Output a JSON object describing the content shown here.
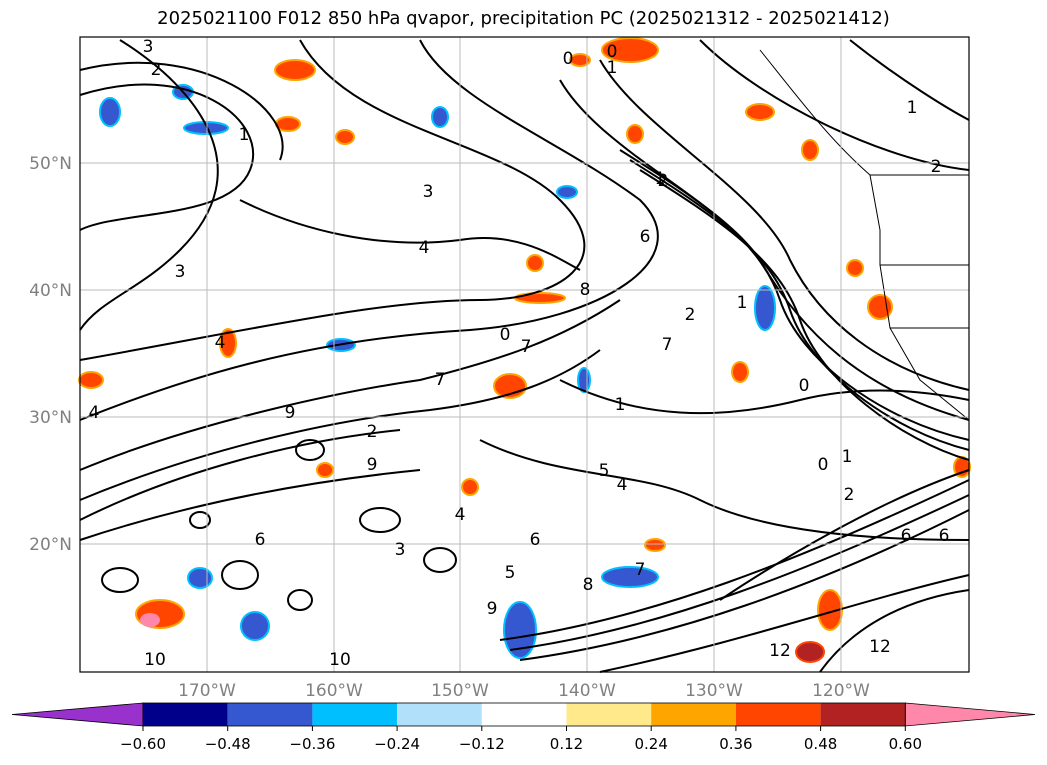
{
  "title": "2025021100 F012 850 hPa qvapor, precipitation PC (2025021312 - 2025021412)",
  "map": {
    "lat_labels": [
      "50°N",
      "40°N",
      "30°N",
      "20°N"
    ],
    "lon_labels": [
      "170°W",
      "160°W",
      "150°W",
      "140°W",
      "130°W",
      "120°W"
    ],
    "grid": true,
    "contour_labels": [
      "3",
      "2",
      "1",
      "0",
      "1",
      "2",
      "3",
      "4",
      "3",
      "4",
      "6",
      "7",
      "8",
      "7",
      "0",
      "1",
      "2",
      "4",
      "5",
      "6",
      "7",
      "8",
      "9",
      "10",
      "9",
      "4",
      "6",
      "12",
      "12",
      "6",
      "0",
      "1",
      "2",
      "1",
      "0",
      "1",
      "2",
      "3",
      "4",
      "5",
      "7",
      "6",
      "10",
      "9",
      "2",
      "1",
      "0"
    ]
  },
  "colorbar": {
    "ticks": [
      "−0.60",
      "−0.48",
      "−0.36",
      "−0.24",
      "−0.12",
      "0.12",
      "0.24",
      "0.36",
      "0.48",
      "0.60"
    ],
    "colors": [
      "#9932cc",
      "#00008b",
      "#3558d0",
      "#00bfff",
      "#b0e0fa",
      "#ffffff",
      "#ffe98a",
      "#ffa500",
      "#ff4500",
      "#b22222",
      "#ff88aa"
    ]
  }
}
